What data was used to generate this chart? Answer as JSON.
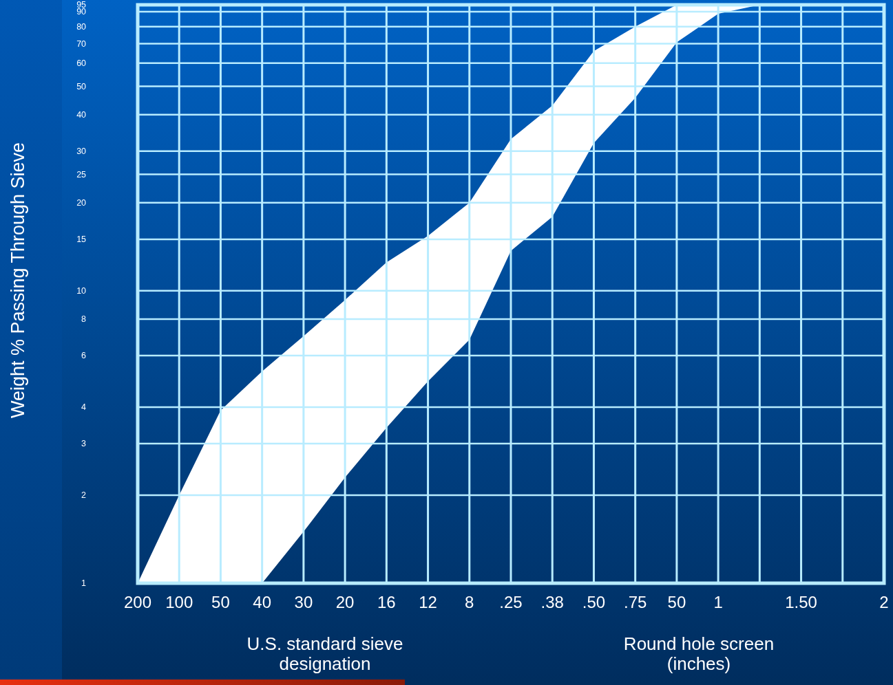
{
  "chart_data": {
    "type": "line",
    "xlabel": "U.S. standard sieve\ndesignation",
    "ylabel": "Weight % Passing Through Sieve",
    "annotations": [
      "Round hole screen\n(inches)"
    ],
    "categories": [
      "200",
      "100",
      "50",
      "40",
      "30",
      "20",
      "16",
      "12",
      "8",
      ".25",
      ".38",
      ".50",
      ".75",
      "50",
      "1",
      null,
      "1.50",
      null,
      "2"
    ],
    "series": [
      {
        "color": "#ffffff",
        "values": [
          null,
          null,
          null,
          null,
          null,
          null,
          null,
          null,
          null,
          null,
          null,
          null,
          null,
          null,
          null,
          null,
          null,
          null,
          null
        ],
        "lower": [
          1,
          1,
          1,
          1,
          1.5,
          2.3,
          3.4,
          4.9,
          6.8,
          13.7,
          17.9,
          32,
          45.7,
          70.7,
          88.5,
          95,
          null,
          null,
          null
        ],
        "upper": [
          1,
          2,
          3.9,
          5.3,
          7,
          9.3,
          12.5,
          15.4,
          20,
          33,
          43,
          66,
          80,
          95,
          95,
          95,
          null,
          null,
          null
        ]
      }
    ],
    "log": "y",
    "ylim": [
      1,
      95
    ],
    "yticks": [
      1,
      2,
      3,
      4,
      6,
      8,
      10,
      15,
      20,
      25,
      30,
      40,
      50,
      60,
      70,
      80,
      90,
      95
    ],
    "grid": true
  }
}
